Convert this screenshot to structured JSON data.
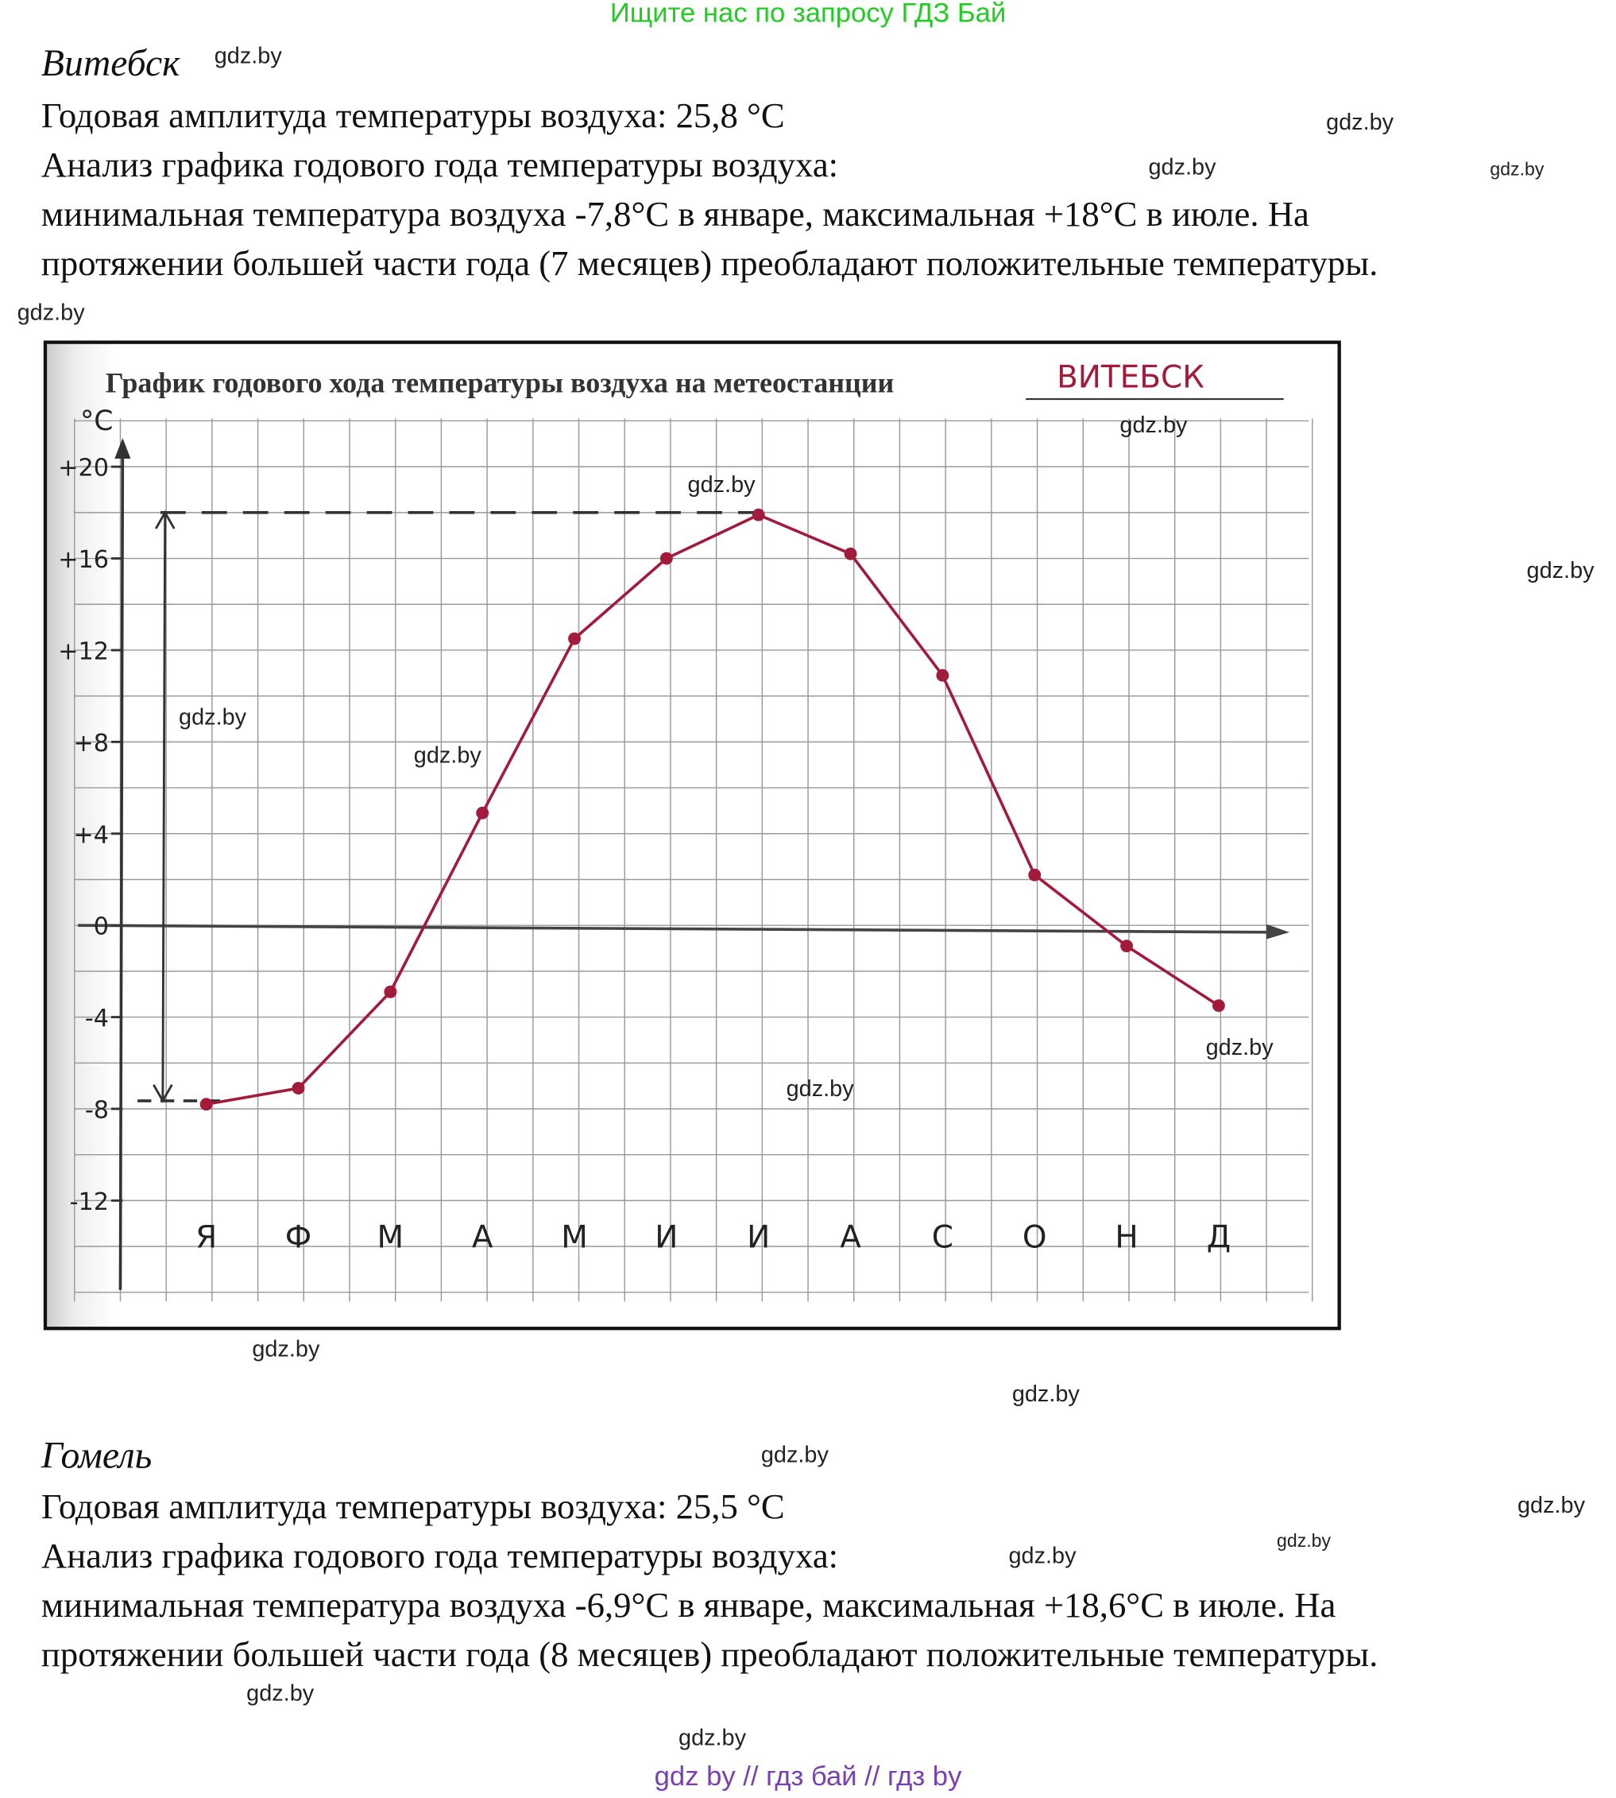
{
  "banner": "Ищите нас по запросу ГДЗ Бай",
  "vitebsk": {
    "city": "Витебск",
    "amplitude": "Годовая амплитуда температуры воздуха: 25,8 °С",
    "analysis_title": "Анализ графика годового года температуры воздуха:",
    "line1": "минимальная температура воздуха -7,8°С в январе, максимальная +18°С в июле. На",
    "line2": "протяжении большей части года (7 месяцев) преобладают положительные температуры."
  },
  "gomel": {
    "city": "Гомель",
    "amplitude": "Годовая амплитуда температуры воздуха: 25,5 °С",
    "analysis_title": "Анализ графика годового года температуры воздуха:",
    "line1": "минимальная температура воздуха -6,9°С в январе, максимальная +18,6°С в июле. На",
    "line2": "протяжении большей части года (8 месяцев) преобладают положительные температуры."
  },
  "watermark": "gdz.by",
  "footer": "gdz by  //  гдз бай  //  гдз by",
  "chart_data": {
    "type": "line",
    "title": "График годового хода температуры воздуха на метеостанции",
    "station": "ВИТЕБСК",
    "ylabel": "°С",
    "categories": [
      "Я",
      "Ф",
      "М",
      "А",
      "М",
      "И",
      "И",
      "А",
      "С",
      "О",
      "Н",
      "Д"
    ],
    "values": [
      -7.8,
      -7.1,
      -2.9,
      4.9,
      12.5,
      16.0,
      17.9,
      16.2,
      10.9,
      2.2,
      -0.9,
      -3.5
    ],
    "yticks": [
      "+20",
      "+16",
      "+12",
      "+8",
      "+4",
      "0",
      "-4",
      "-8",
      "-12"
    ],
    "ytick_values": [
      20,
      16,
      12,
      8,
      4,
      0,
      -4,
      -8,
      -12
    ],
    "ylim": [
      -16,
      22
    ],
    "grid": true,
    "line_color": "#a31b3a",
    "amplitude_marker": {
      "min": -7.8,
      "max": 18
    }
  }
}
